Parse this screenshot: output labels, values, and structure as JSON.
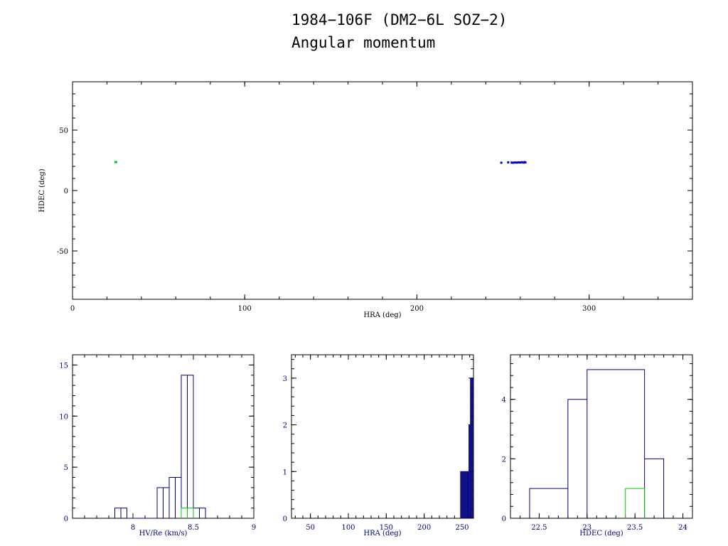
{
  "title_line1": "1984−106F (DM2−6L SOZ−2)",
  "title_line2": "Angular momentum",
  "colors": {
    "axes": "#000000",
    "histogram": "#000080",
    "primary": "#0000cc",
    "secondary": "#00cc00"
  },
  "chart_data": [
    {
      "type": "scatter",
      "xlabel": "HRA (deg)",
      "ylabel": "HDEC (deg)",
      "xlim": [
        0,
        360
      ],
      "ylim": [
        -90,
        90
      ],
      "xticks": [
        0,
        100,
        200,
        300
      ],
      "yticks": [
        -50,
        0,
        50
      ],
      "series": [
        {
          "color": "#00cc00",
          "points": [
            [
              25,
              23.5
            ],
            [
              25.3,
              23.6
            ]
          ]
        },
        {
          "color": "#0000cc",
          "points": [
            [
              249,
              23.0
            ],
            [
              253,
              23.3
            ],
            [
              255,
              23.1
            ],
            [
              256,
              23.0
            ],
            [
              257,
              23.2
            ],
            [
              258,
              23.1
            ],
            [
              259,
              23.3
            ],
            [
              260,
              23.2
            ],
            [
              261,
              23.4
            ],
            [
              262,
              23.1
            ],
            [
              262.5,
              23.5
            ],
            [
              263,
              23.3
            ]
          ]
        }
      ]
    },
    {
      "type": "histogram",
      "xlabel": "HV/Re (km/s)",
      "xlim": [
        7.5,
        9
      ],
      "ylim": [
        0,
        16
      ],
      "xticks": [
        8,
        8.5,
        9
      ],
      "yticks": [
        0,
        5,
        10,
        15
      ],
      "series": [
        {
          "color": "#000080",
          "edges": [
            7.85,
            7.9,
            7.95,
            8.0,
            8.05,
            8.1,
            8.15,
            8.2,
            8.25,
            8.3,
            8.35,
            8.4,
            8.45,
            8.5,
            8.55,
            8.6
          ],
          "counts": [
            1,
            1,
            0,
            0,
            0,
            0,
            0,
            3,
            3,
            4,
            4,
            14,
            14,
            1,
            1
          ]
        },
        {
          "color": "#00cc00",
          "edges": [
            8.4,
            8.45,
            8.5
          ],
          "counts": [
            1,
            1
          ]
        }
      ]
    },
    {
      "type": "histogram",
      "xlabel": "HRA (deg)",
      "xlim": [
        25,
        265
      ],
      "ylim": [
        0,
        3.5
      ],
      "xticks": [
        50,
        100,
        150,
        200,
        250
      ],
      "yticks": [
        0,
        1,
        2,
        3
      ],
      "series": [
        {
          "color": "#000080",
          "edges": [
            248,
            249,
            250,
            251,
            252,
            253,
            254,
            255,
            256,
            257,
            258,
            259,
            260,
            261,
            262,
            263,
            264
          ],
          "counts": [
            1,
            0,
            1,
            0,
            1,
            1,
            0,
            1,
            1,
            0,
            1,
            2,
            2,
            3,
            2,
            3
          ]
        }
      ]
    },
    {
      "type": "histogram",
      "xlabel": "HDEC (deg)",
      "xlim": [
        22.2,
        24.1
      ],
      "ylim": [
        0,
        5.5
      ],
      "xticks": [
        22.5,
        23,
        23.5,
        24
      ],
      "yticks": [
        0,
        2,
        4
      ],
      "series": [
        {
          "color": "#000080",
          "edges": [
            22.4,
            22.8,
            23.0,
            23.6,
            23.8
          ],
          "counts": [
            1,
            4,
            5,
            2
          ]
        },
        {
          "color": "#00cc00",
          "edges": [
            23.4,
            23.6
          ],
          "counts": [
            1
          ]
        }
      ]
    }
  ]
}
